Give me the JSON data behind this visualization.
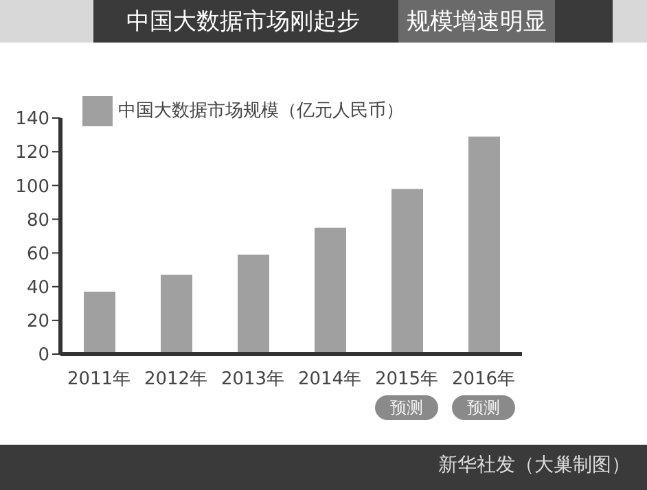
{
  "chart_data": {
    "type": "bar",
    "title": "中国大数据市场刚起步",
    "subtitle": "规模增速明显",
    "categories": [
      "2011年",
      "2012年",
      "2013年",
      "2014年",
      "2015年",
      "2016年"
    ],
    "series": [
      {
        "name": "中国大数据市场规模（亿元人民币）",
        "color": "#a0a0a0",
        "values": [
          37,
          47,
          59,
          75,
          98,
          129
        ]
      }
    ],
    "ylim": [
      0,
      140
    ],
    "yticks": [
      0,
      20,
      40,
      60,
      80,
      100,
      120,
      140
    ],
    "grid": false,
    "legend": "top left",
    "annotations": [
      "预测",
      "预测",
      "新华社发（大巢制图）"
    ]
  }
}
